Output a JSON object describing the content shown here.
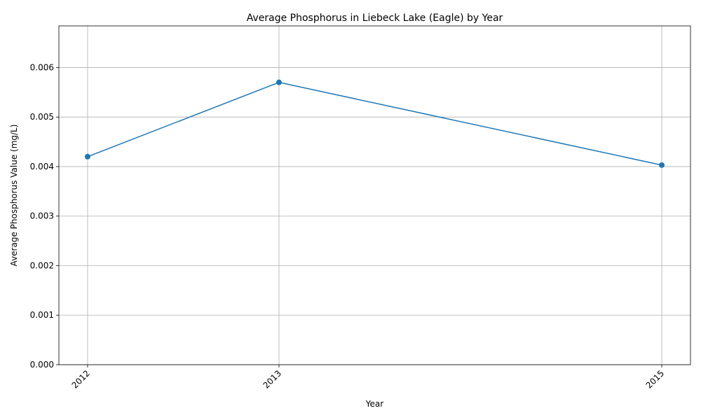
{
  "chart_data": {
    "type": "line",
    "title": "Average Phosphorus in Liebeck Lake (Eagle) by Year",
    "xlabel": "Year",
    "ylabel": "Average Phosphorus Value (mg/L)",
    "x": [
      2012,
      2013,
      2015
    ],
    "xtick_labels": [
      "2012",
      "2013",
      "2015"
    ],
    "xlim": [
      2011.85,
      2015.15
    ],
    "ylim": [
      0,
      0.00684
    ],
    "yticks": [
      0,
      0.001,
      0.002,
      0.003,
      0.004,
      0.005,
      0.006
    ],
    "ytick_labels": [
      "0.000",
      "0.001",
      "0.002",
      "0.003",
      "0.004",
      "0.005",
      "0.006"
    ],
    "series": [
      {
        "values": [
          0.0042,
          0.0057,
          0.00403
        ],
        "color": "#1f77b4",
        "marker": "circle"
      }
    ],
    "grid": true,
    "legend": false
  }
}
